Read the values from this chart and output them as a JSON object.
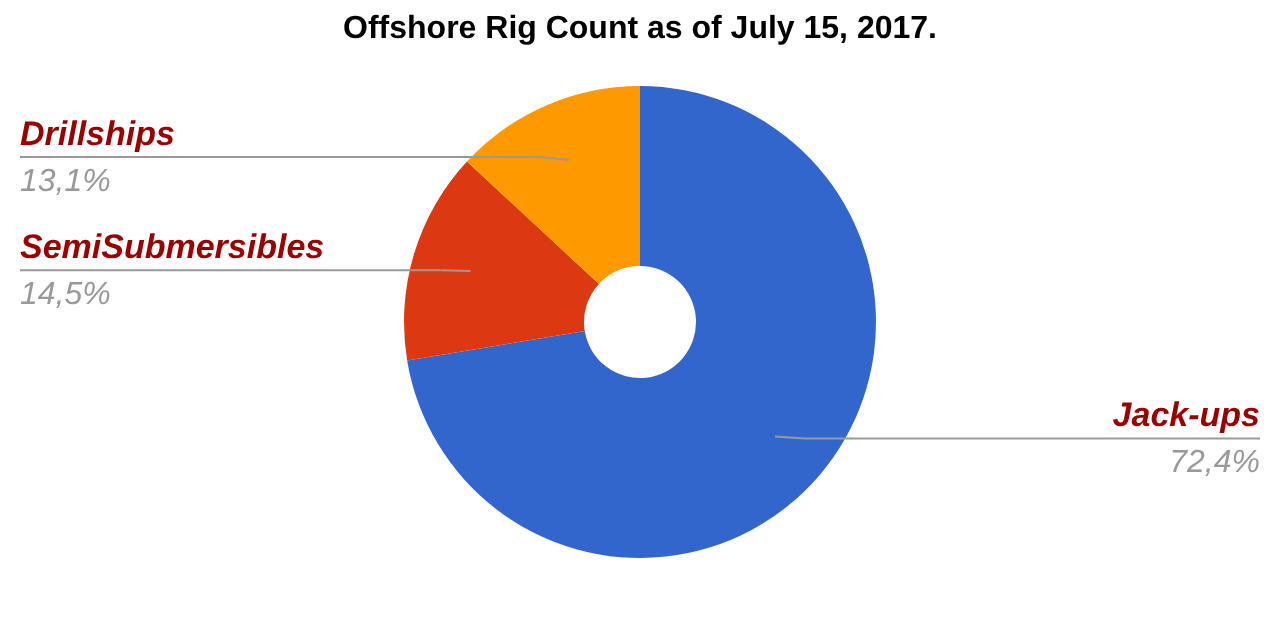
{
  "chart_data": {
    "type": "donut",
    "title": "Offshore Rig Count as of July 15, 2017.",
    "categories": [
      "Jack-ups",
      "SemiSubmersibles",
      "Drillships"
    ],
    "values": [
      72.4,
      14.5,
      13.1
    ],
    "value_labels": [
      "72,4%",
      "14,5%",
      "13,1%"
    ],
    "colors": [
      "#3366cc",
      "#dc3912",
      "#ff9900"
    ],
    "legend": false
  }
}
